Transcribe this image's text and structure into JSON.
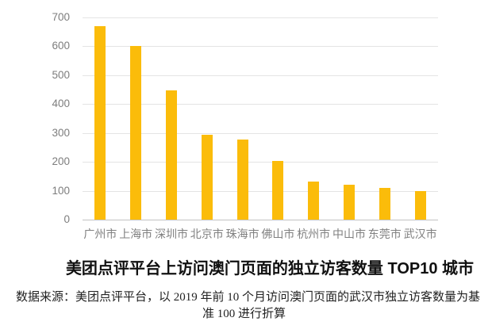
{
  "chart_data": {
    "type": "bar",
    "categories": [
      "广州市",
      "上海市",
      "深圳市",
      "北京市",
      "珠海市",
      "佛山市",
      "杭州市",
      "中山市",
      "东莞市",
      "武汉市"
    ],
    "values": [
      670,
      600,
      448,
      295,
      276,
      203,
      132,
      121,
      109,
      100
    ],
    "title": "美团点评平台上访问澳门页面的独立访客数量 TOP10 城市",
    "xlabel": "",
    "ylabel": "",
    "ylim": [
      0,
      700
    ],
    "ytick_interval": 100,
    "grid": true,
    "legend": false,
    "bar_color": "#fbbc0a",
    "axis_label_color": "#808080"
  },
  "title": "美团点评平台上访问澳门页面的独立访客数量 TOP10 城市",
  "source_note": {
    "line1": "数据来源：美团点评平台，以 2019 年前 10 个月访问澳门页面的武汉市独立访客数量为基",
    "line2": "准 100 进行折算"
  }
}
